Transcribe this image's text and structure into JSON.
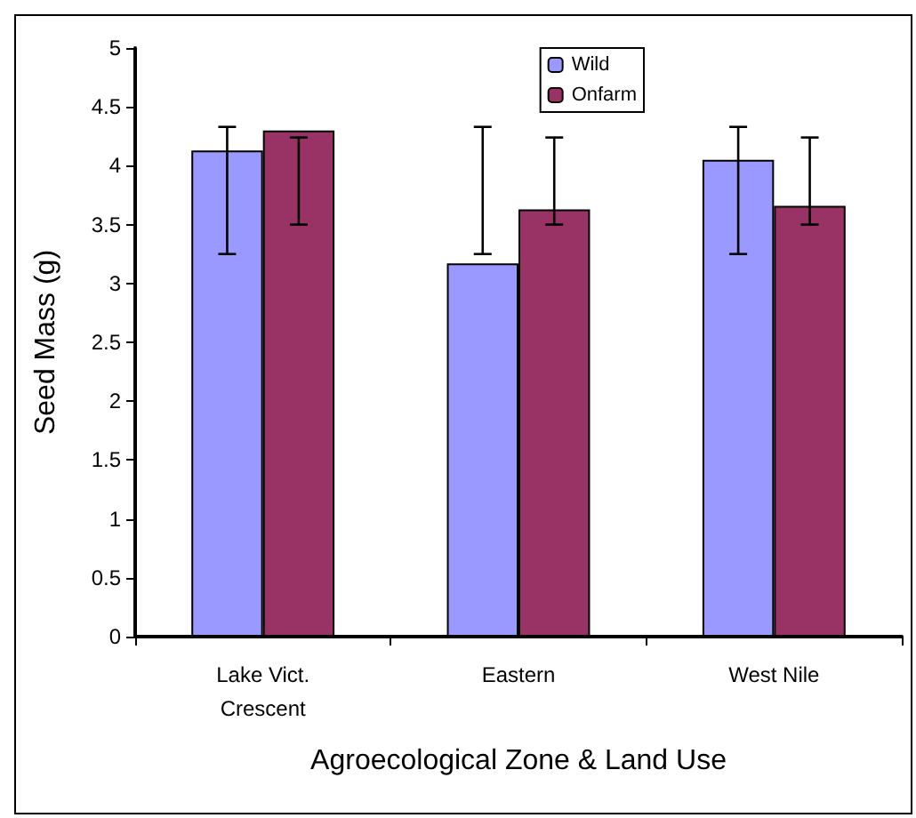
{
  "chart_data": {
    "type": "bar",
    "xlabel": "Agroecological Zone & Land Use",
    "ylabel": "Seed Mass (g)",
    "categories": [
      "Lake Vict.\nCrescent",
      "Eastern",
      "West Nile"
    ],
    "series": [
      {
        "name": "Wild",
        "color": "#9999ff",
        "values": [
          4.13,
          3.17,
          4.05
        ],
        "errors": [
          [
            3.25,
            4.33
          ],
          [
            3.25,
            4.33
          ],
          [
            3.25,
            4.33
          ]
        ]
      },
      {
        "name": "Onfarm",
        "color": "#993366",
        "values": [
          4.3,
          3.63,
          3.66
        ],
        "errors": [
          [
            3.5,
            4.24
          ],
          [
            3.5,
            4.24
          ],
          [
            3.5,
            4.24
          ]
        ]
      }
    ],
    "ylim": [
      0,
      5
    ],
    "yticks": [
      0,
      0.5,
      1,
      1.5,
      2,
      2.5,
      3,
      3.5,
      4,
      4.5,
      5
    ],
    "grid": false,
    "legend": "top right"
  }
}
